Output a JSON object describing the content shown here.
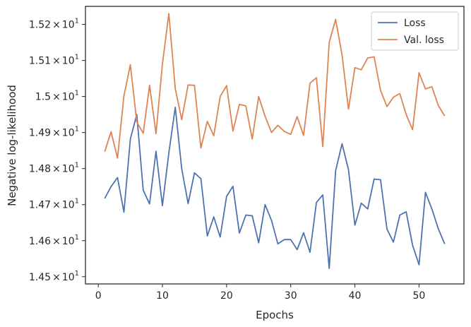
{
  "chart_data": {
    "type": "line",
    "title": "",
    "xlabel": "Epochs",
    "ylabel": "Negative log-likelihood",
    "xlim": [
      -2,
      57
    ],
    "ylim": [
      14.48,
      15.25
    ],
    "x_ticks": [
      0,
      10,
      20,
      30,
      40,
      50
    ],
    "y_ticks": [
      {
        "value": 14.5,
        "mantissa": "1.45",
        "base": "10",
        "exp": "1"
      },
      {
        "value": 14.6,
        "mantissa": "1.46",
        "base": "10",
        "exp": "1"
      },
      {
        "value": 14.7,
        "mantissa": "1.47",
        "base": "10",
        "exp": "1"
      },
      {
        "value": 14.8,
        "mantissa": "1.48",
        "base": "10",
        "exp": "1"
      },
      {
        "value": 14.9,
        "mantissa": "1.49",
        "base": "10",
        "exp": "1"
      },
      {
        "value": 15.0,
        "mantissa": "1.5",
        "base": "10",
        "exp": "1"
      },
      {
        "value": 15.1,
        "mantissa": "1.51",
        "base": "10",
        "exp": "1"
      },
      {
        "value": 15.2,
        "mantissa": "1.52",
        "base": "10",
        "exp": "1"
      }
    ],
    "times_symbol": "×",
    "grid": false,
    "legend_position": "top-right",
    "x": [
      1,
      2,
      3,
      4,
      5,
      6,
      7,
      8,
      9,
      10,
      11,
      12,
      13,
      14,
      15,
      16,
      17,
      18,
      19,
      20,
      21,
      22,
      23,
      24,
      25,
      26,
      27,
      28,
      29,
      30,
      31,
      32,
      33,
      34,
      35,
      36,
      37,
      38,
      39,
      40,
      41,
      42,
      43,
      44,
      45,
      46,
      47,
      48,
      49,
      50,
      51,
      52,
      53,
      54
    ],
    "series": [
      {
        "name": "Loss",
        "color": "#4c72b0",
        "values": [
          14.717,
          14.75,
          14.775,
          14.679,
          14.882,
          14.95,
          14.74,
          14.702,
          14.848,
          14.697,
          14.843,
          14.97,
          14.8,
          14.703,
          14.788,
          14.772,
          14.613,
          14.666,
          14.61,
          14.723,
          14.751,
          14.621,
          14.671,
          14.669,
          14.594,
          14.7,
          14.656,
          14.591,
          14.603,
          14.603,
          14.575,
          14.622,
          14.568,
          14.706,
          14.727,
          14.523,
          14.794,
          14.869,
          14.797,
          14.643,
          14.704,
          14.688,
          14.771,
          14.769,
          14.632,
          14.596,
          14.671,
          14.68,
          14.587,
          14.533,
          14.734,
          14.688,
          14.633,
          14.591
        ]
      },
      {
        "name": "Val. loss",
        "color": "#dd8452",
        "values": [
          14.847,
          14.902,
          14.829,
          15.002,
          15.088,
          14.929,
          14.898,
          15.031,
          14.897,
          15.09,
          15.23,
          15.022,
          14.936,
          15.032,
          15.031,
          14.857,
          14.931,
          14.891,
          15.0,
          15.03,
          14.904,
          14.978,
          14.974,
          14.882,
          15.0,
          14.945,
          14.9,
          14.92,
          14.903,
          14.895,
          14.944,
          14.892,
          15.037,
          15.052,
          14.861,
          15.15,
          15.214,
          15.115,
          14.965,
          15.08,
          15.074,
          15.107,
          15.11,
          15.017,
          14.972,
          14.998,
          15.008,
          14.95,
          14.908,
          15.066,
          15.021,
          15.027,
          14.975,
          14.946
        ]
      }
    ]
  }
}
